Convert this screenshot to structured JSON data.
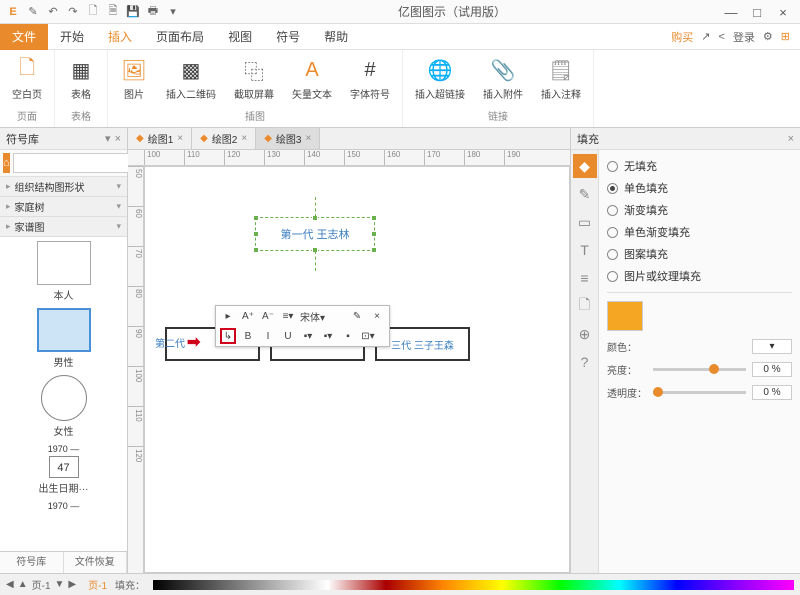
{
  "title": "亿图图示（试用版）",
  "qat_icons": [
    "E",
    "✎",
    "↶",
    "↷",
    "🗋",
    "🗎",
    "💾",
    "🖶",
    "▾"
  ],
  "win": {
    "min": "—",
    "max": "□",
    "close": "×"
  },
  "menu": {
    "file": "文件",
    "tabs": [
      "开始",
      "插入",
      "页面布局",
      "视图",
      "符号",
      "帮助"
    ],
    "active": "插入",
    "right": {
      "buy": "购买",
      "share_icon": "↗",
      "share2": "<",
      "login": "登录",
      "gear": "⚙",
      "apps": "⊞"
    }
  },
  "ribbon": {
    "groups": [
      {
        "label": "页面",
        "items": [
          {
            "icon": "🗋",
            "label": "空白页",
            "color": "#e98b2c"
          }
        ]
      },
      {
        "label": "表格",
        "items": [
          {
            "icon": "▦",
            "label": "表格",
            "color": "#444"
          }
        ]
      },
      {
        "label": "插图",
        "items": [
          {
            "icon": "🖼",
            "label": "图片",
            "color": "#e98b2c"
          },
          {
            "icon": "▩",
            "label": "插入二维码",
            "color": "#444"
          },
          {
            "icon": "⿻",
            "label": "截取屏幕",
            "color": "#444"
          },
          {
            "icon": "A",
            "label": "矢量文本",
            "color": "#e98b2c"
          },
          {
            "icon": "#",
            "label": "字体符号",
            "color": "#444"
          }
        ]
      },
      {
        "label": "链接",
        "items": [
          {
            "icon": "🌐",
            "label": "插入超链接",
            "color": "#e98b2c"
          },
          {
            "icon": "📎",
            "label": "插入附件",
            "color": "#888"
          },
          {
            "icon": "🗒",
            "label": "插入注释",
            "color": "#888"
          }
        ]
      }
    ]
  },
  "left": {
    "title": "符号库",
    "search_placeholder": "",
    "categories": [
      "组织结构图形状",
      "家庭树",
      "家谱图"
    ],
    "shapes": [
      {
        "label": "本人",
        "type": "rect"
      },
      {
        "label": "男性",
        "type": "rect-sel"
      },
      {
        "label": "女性",
        "type": "circle"
      }
    ],
    "year1": "1970 —",
    "age": "47",
    "birth_label": "出生日期···",
    "year2": "1970 —",
    "bottom_tabs": [
      "符号库",
      "文件恢复"
    ]
  },
  "docs": {
    "tabs": [
      {
        "name": "绘图1",
        "active": false
      },
      {
        "name": "绘图2",
        "active": false
      },
      {
        "name": "绘图3",
        "active": true
      }
    ]
  },
  "ruler_h": [
    "100",
    "110",
    "120",
    "130",
    "140",
    "150",
    "160",
    "170",
    "180",
    "190"
  ],
  "ruler_v": [
    "50",
    "60",
    "70",
    "80",
    "90",
    "100",
    "110",
    "120"
  ],
  "canvas": {
    "node1_text": "第一代 王志林",
    "child3_text": "三代 三子王森",
    "child1_text": "第二代",
    "toolbar": {
      "row1": [
        "▸",
        "A⁺",
        "A⁻",
        "≡▾",
        "宋体▾",
        "",
        "✎",
        "×"
      ],
      "row2": [
        "↳",
        "B",
        "I",
        "U",
        "▪▾",
        "▪▾",
        "▪",
        "⊡▾"
      ]
    }
  },
  "right": {
    "title": "填充",
    "tools": [
      "◆",
      "✎",
      "▭",
      "T",
      "≡",
      "🗋",
      "⊕",
      "?"
    ],
    "options": [
      "无填充",
      "单色填充",
      "渐变填充",
      "单色渐变填充",
      "图案填充",
      "图片或纹理填充"
    ],
    "selected": 1,
    "color_label": "颜色：",
    "bright_label": "亮度：",
    "bright_val": "0 %",
    "trans_label": "透明度：",
    "trans_val": "0 %",
    "swatch_color": "#f5a623"
  },
  "status": {
    "page_nav": "页-1",
    "page_nav2": "页-1",
    "fill_label": "填充："
  }
}
